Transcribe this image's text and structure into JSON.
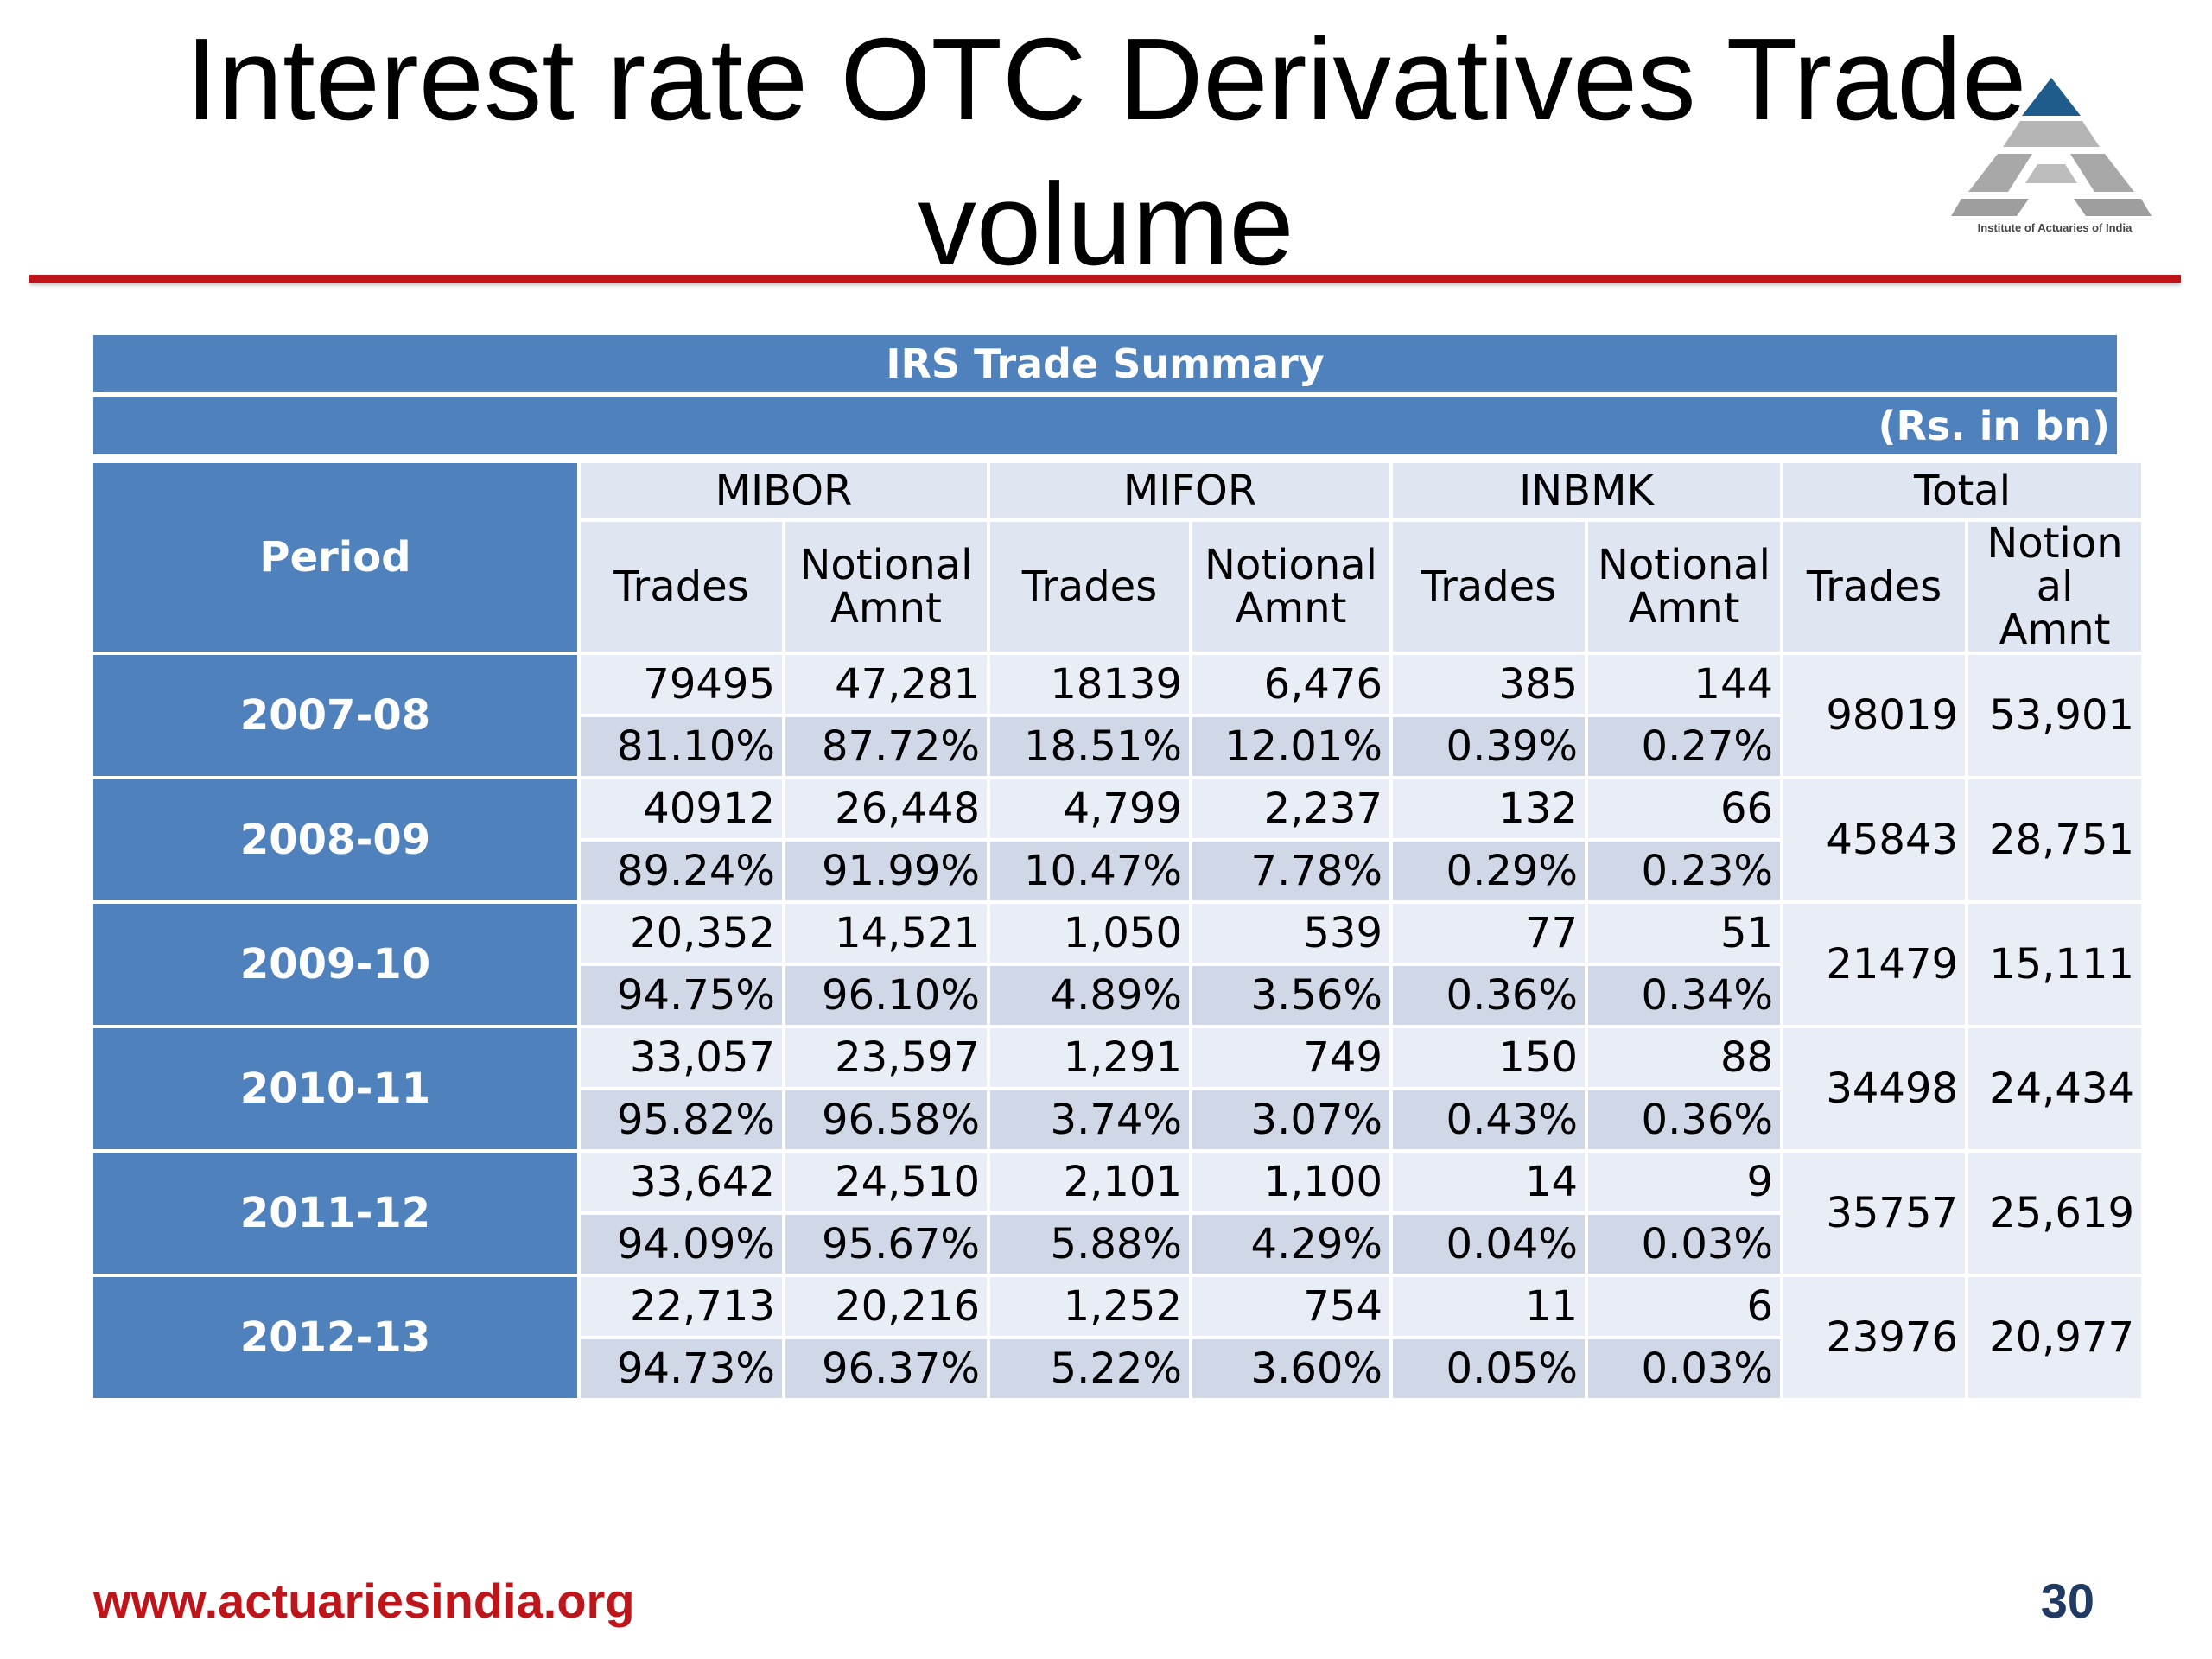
{
  "slide": {
    "title_line1": "Interest rate OTC Derivatives Trade",
    "title_line2": "volume",
    "logo_caption": "Institute of Actuaries of India",
    "footer_url": "www.actuariesindia.org",
    "page_number": "30",
    "colors": {
      "accent_red": "#c0141b",
      "header_blue": "#4f81bd",
      "row_light": "#e9edf5",
      "row_dark": "#d0d8e8",
      "page_number": "#1f3b64"
    }
  },
  "table": {
    "title": "IRS Trade Summary",
    "unit": "(Rs. in bn)",
    "period_header": "Period",
    "groups": [
      "MIBOR",
      "MIFOR",
      "INBMK",
      "Total"
    ],
    "sub_headers": {
      "mibor_trades": "Trades",
      "mibor_notional_line1": "Notional",
      "mibor_notional_line2": "Amnt",
      "mifor_trades": "Trades",
      "mifor_notional_line1": "Notional",
      "mifor_notional_line2": "Amnt",
      "inbmk_trades": "Trades",
      "inbmk_notional_line1": "Notional",
      "inbmk_notional_line2": "Amnt",
      "total_trades": "Trades",
      "total_notional_line1": "Notion",
      "total_notional_line2": "al Amnt"
    },
    "rows": [
      {
        "period": "2007-08",
        "values": [
          "79495",
          "47,281",
          "18139",
          "6,476",
          "385",
          "144"
        ],
        "shares": [
          "81.10%",
          "87.72%",
          "18.51%",
          "12.01%",
          "0.39%",
          "0.27%"
        ],
        "total_trades": "98019",
        "total_notional": "53,901"
      },
      {
        "period": "2008-09",
        "values": [
          "40912",
          "26,448",
          "4,799",
          "2,237",
          "132",
          "66"
        ],
        "shares": [
          "89.24%",
          "91.99%",
          "10.47%",
          "7.78%",
          "0.29%",
          "0.23%"
        ],
        "total_trades": "45843",
        "total_notional": "28,751"
      },
      {
        "period": "2009-10",
        "values": [
          "20,352",
          "14,521",
          "1,050",
          "539",
          "77",
          "51"
        ],
        "shares": [
          "94.75%",
          "96.10%",
          "4.89%",
          "3.56%",
          "0.36%",
          "0.34%"
        ],
        "total_trades": "21479",
        "total_notional": "15,111"
      },
      {
        "period": "2010-11",
        "values": [
          "33,057",
          "23,597",
          "1,291",
          "749",
          "150",
          "88"
        ],
        "shares": [
          "95.82%",
          "96.58%",
          "3.74%",
          "3.07%",
          "0.43%",
          "0.36%"
        ],
        "total_trades": "34498",
        "total_notional": "24,434"
      },
      {
        "period": "2011-12",
        "values": [
          "33,642",
          "24,510",
          "2,101",
          "1,100",
          "14",
          "9"
        ],
        "shares": [
          "94.09%",
          "95.67%",
          "5.88%",
          "4.29%",
          "0.04%",
          "0.03%"
        ],
        "total_trades": "35757",
        "total_notional": "25,619"
      },
      {
        "period": "2012-13",
        "values": [
          "22,713",
          "20,216",
          "1,252",
          "754",
          "11",
          "6"
        ],
        "shares": [
          "94.73%",
          "96.37%",
          "5.22%",
          "3.60%",
          "0.05%",
          "0.03%"
        ],
        "total_trades": "23976",
        "total_notional": "20,977"
      }
    ]
  }
}
